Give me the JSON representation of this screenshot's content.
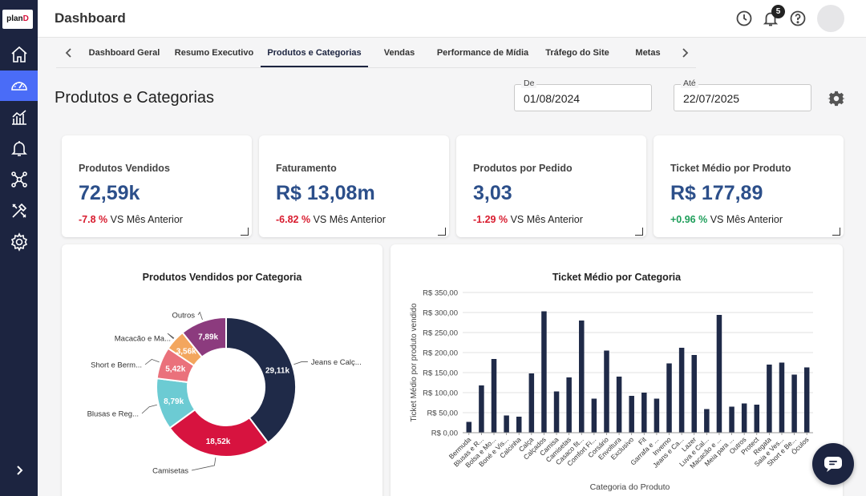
{
  "brand": {
    "logo_text_a": "plan",
    "logo_text_b": "D"
  },
  "header": {
    "title": "Dashboard",
    "notification_count": "5"
  },
  "sidebar": {
    "items": [
      {
        "name": "home",
        "icon": "home-icon"
      },
      {
        "name": "dashboard",
        "icon": "gauge-icon",
        "active": true
      },
      {
        "name": "analytics",
        "icon": "bar-chart-icon"
      },
      {
        "name": "alerts",
        "icon": "bell-icon"
      },
      {
        "name": "network",
        "icon": "network-icon"
      },
      {
        "name": "tools",
        "icon": "tools-icon"
      },
      {
        "name": "settings",
        "icon": "gear-icon"
      }
    ]
  },
  "tabs": [
    {
      "label": "Dashboard Geral"
    },
    {
      "label": "Resumo Executivo"
    },
    {
      "label": "Produtos e Categorias",
      "active": true
    },
    {
      "label": "Vendas"
    },
    {
      "label": "Performance de Mídia"
    },
    {
      "label": "Tráfego do Site"
    },
    {
      "label": "Metas"
    }
  ],
  "page": {
    "title": "Produtos e Categorias",
    "date_from": {
      "label": "De",
      "value": "01/08/2024"
    },
    "date_to": {
      "label": "Até",
      "value": "22/07/2025"
    }
  },
  "kpis": [
    {
      "title": "Produtos Vendidos",
      "value": "72,59k",
      "delta": "-7.8 %",
      "delta_dir": "neg",
      "compare": "VS Mês Anterior"
    },
    {
      "title": "Faturamento",
      "value": "R$ 13,08m",
      "delta": "-6.82 %",
      "delta_dir": "neg",
      "compare": "VS Mês Anterior"
    },
    {
      "title": "Produtos por Pedido",
      "value": "3,03",
      "delta": "-1.29 %",
      "delta_dir": "neg",
      "compare": "VS Mês Anterior"
    },
    {
      "title": "Ticket Médio por Produto",
      "value": "R$ 177,89",
      "delta": "+0.96 %",
      "delta_dir": "pos",
      "compare": "VS Mês Anterior"
    }
  ],
  "colors": {
    "navy": "#1c2440",
    "accent_active": "#4a6cf7",
    "kpi_value": "#2c4f8a",
    "negative": "#d81b2e",
    "positive": "#1e9e5a"
  },
  "chart_data": [
    {
      "type": "pie",
      "title": "Produtos Vendidos por Categoria",
      "slices": [
        {
          "name": "Jeans e Calç...",
          "value": 29.11,
          "label": "29,11k",
          "color": "#1f2a48"
        },
        {
          "name": "Camisetas",
          "value": 18.52,
          "label": "18,52k",
          "color": "#d7133f"
        },
        {
          "name": "Blusas e Reg...",
          "value": 8.79,
          "label": "8,79k",
          "color": "#6ccbd3"
        },
        {
          "name": "Short e Berm...",
          "value": 5.42,
          "label": "5,42k",
          "color": "#ea717b"
        },
        {
          "name": "Macacão e Ma...",
          "value": 3.56,
          "label": "3,56k",
          "color": "#f3a65e"
        },
        {
          "name": "Outros",
          "value": 7.89,
          "label": "7,89k",
          "color": "#8c3b7e"
        }
      ]
    },
    {
      "type": "bar",
      "title": "Ticket Médio por Categoria",
      "xlabel": "Categoria do Produto",
      "ylabel": "Ticket Médio por produto vendido",
      "ylim": [
        0,
        350
      ],
      "yticks": [
        0,
        50,
        100,
        150,
        200,
        250,
        300,
        350
      ],
      "ytick_labels": [
        "R$ 0,00",
        "R$ 50,00",
        "R$ 100,00",
        "R$ 150,00",
        "R$ 200,00",
        "R$ 250,00",
        "R$ 300,00",
        "R$ 350,00"
      ],
      "grid": true,
      "categories": [
        "Bermuda",
        "Blusas e R...",
        "Bolsa e Mo...",
        "Boné e Vis...",
        "Calcinha",
        "Calça",
        "Calçados",
        "Camisa",
        "Camisetas",
        "Casaco fit...",
        "Comfort Fi...",
        "Corsário",
        "Envoltura",
        "Exclusivo",
        "Fit",
        "Garrafa e ...",
        "Inverno",
        "Jeans e Ca...",
        "Lazer",
        "Luva e Cal...",
        "Macacão e ...",
        "Meia para ...",
        "Outros",
        "Protect",
        "Regata",
        "Saia e Ves...",
        "Short e Be...",
        "Óculos"
      ],
      "values": [
        27,
        118,
        184,
        43,
        40,
        148,
        303,
        103,
        138,
        280,
        85,
        205,
        140,
        92,
        100,
        85,
        173,
        212,
        194,
        59,
        294,
        65,
        73,
        70,
        170,
        175,
        145,
        163
      ],
      "bar_color": "#1f2a48"
    }
  ]
}
